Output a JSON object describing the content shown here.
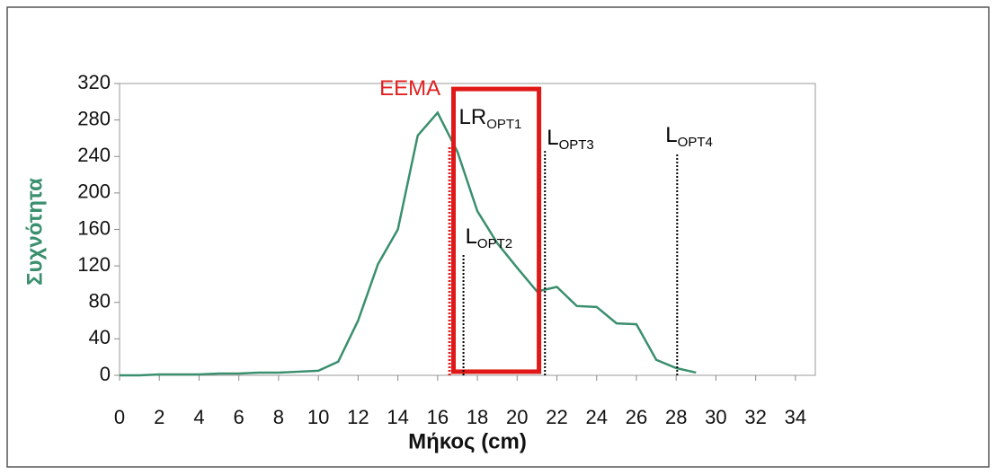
{
  "chart_data": {
    "type": "line",
    "x_label": "Μήκος (cm)",
    "y_label": "Συχνότητα",
    "x": [
      0,
      1,
      2,
      3,
      4,
      5,
      6,
      7,
      8,
      9,
      10,
      11,
      12,
      13,
      14,
      15,
      16,
      17,
      18,
      19,
      20,
      21,
      22,
      23,
      24,
      25,
      26,
      27,
      28,
      29
    ],
    "series": [
      {
        "color": "#3a8f6e",
        "values": [
          0,
          0,
          1,
          1,
          1,
          2,
          2,
          3,
          3,
          4,
          5,
          15,
          60,
          122,
          160,
          263,
          288,
          245,
          180,
          145,
          118,
          92,
          97,
          76,
          75,
          57,
          56,
          17,
          8,
          3
        ]
      }
    ],
    "xlim": [
      0,
      35
    ],
    "xticks": [
      0,
      2,
      4,
      6,
      8,
      10,
      12,
      14,
      16,
      18,
      20,
      22,
      24,
      26,
      28,
      30,
      32,
      34
    ],
    "ylim": [
      0,
      320
    ],
    "yticks": [
      0,
      40,
      80,
      120,
      160,
      200,
      240,
      280,
      320
    ],
    "annotations": [
      {
        "text": "EEMA",
        "x": 16.6,
        "top": 252,
        "color": "#e02020"
      },
      {
        "text": "L",
        "sub": "OPT2",
        "x": 17.3,
        "top": 133,
        "color": "#000000"
      },
      {
        "text": "L",
        "sub": "OPT3",
        "x": 21.4,
        "top": 246,
        "color": "#000000"
      },
      {
        "text": "L",
        "sub": "OPT4",
        "x": 28.05,
        "top": 244,
        "color": "#000000"
      }
    ],
    "highlight": {
      "text": "LR",
      "sub": "OPT1",
      "x": [
        16.8,
        21.1
      ],
      "y": [
        4,
        314
      ],
      "color": "#e01818"
    }
  }
}
